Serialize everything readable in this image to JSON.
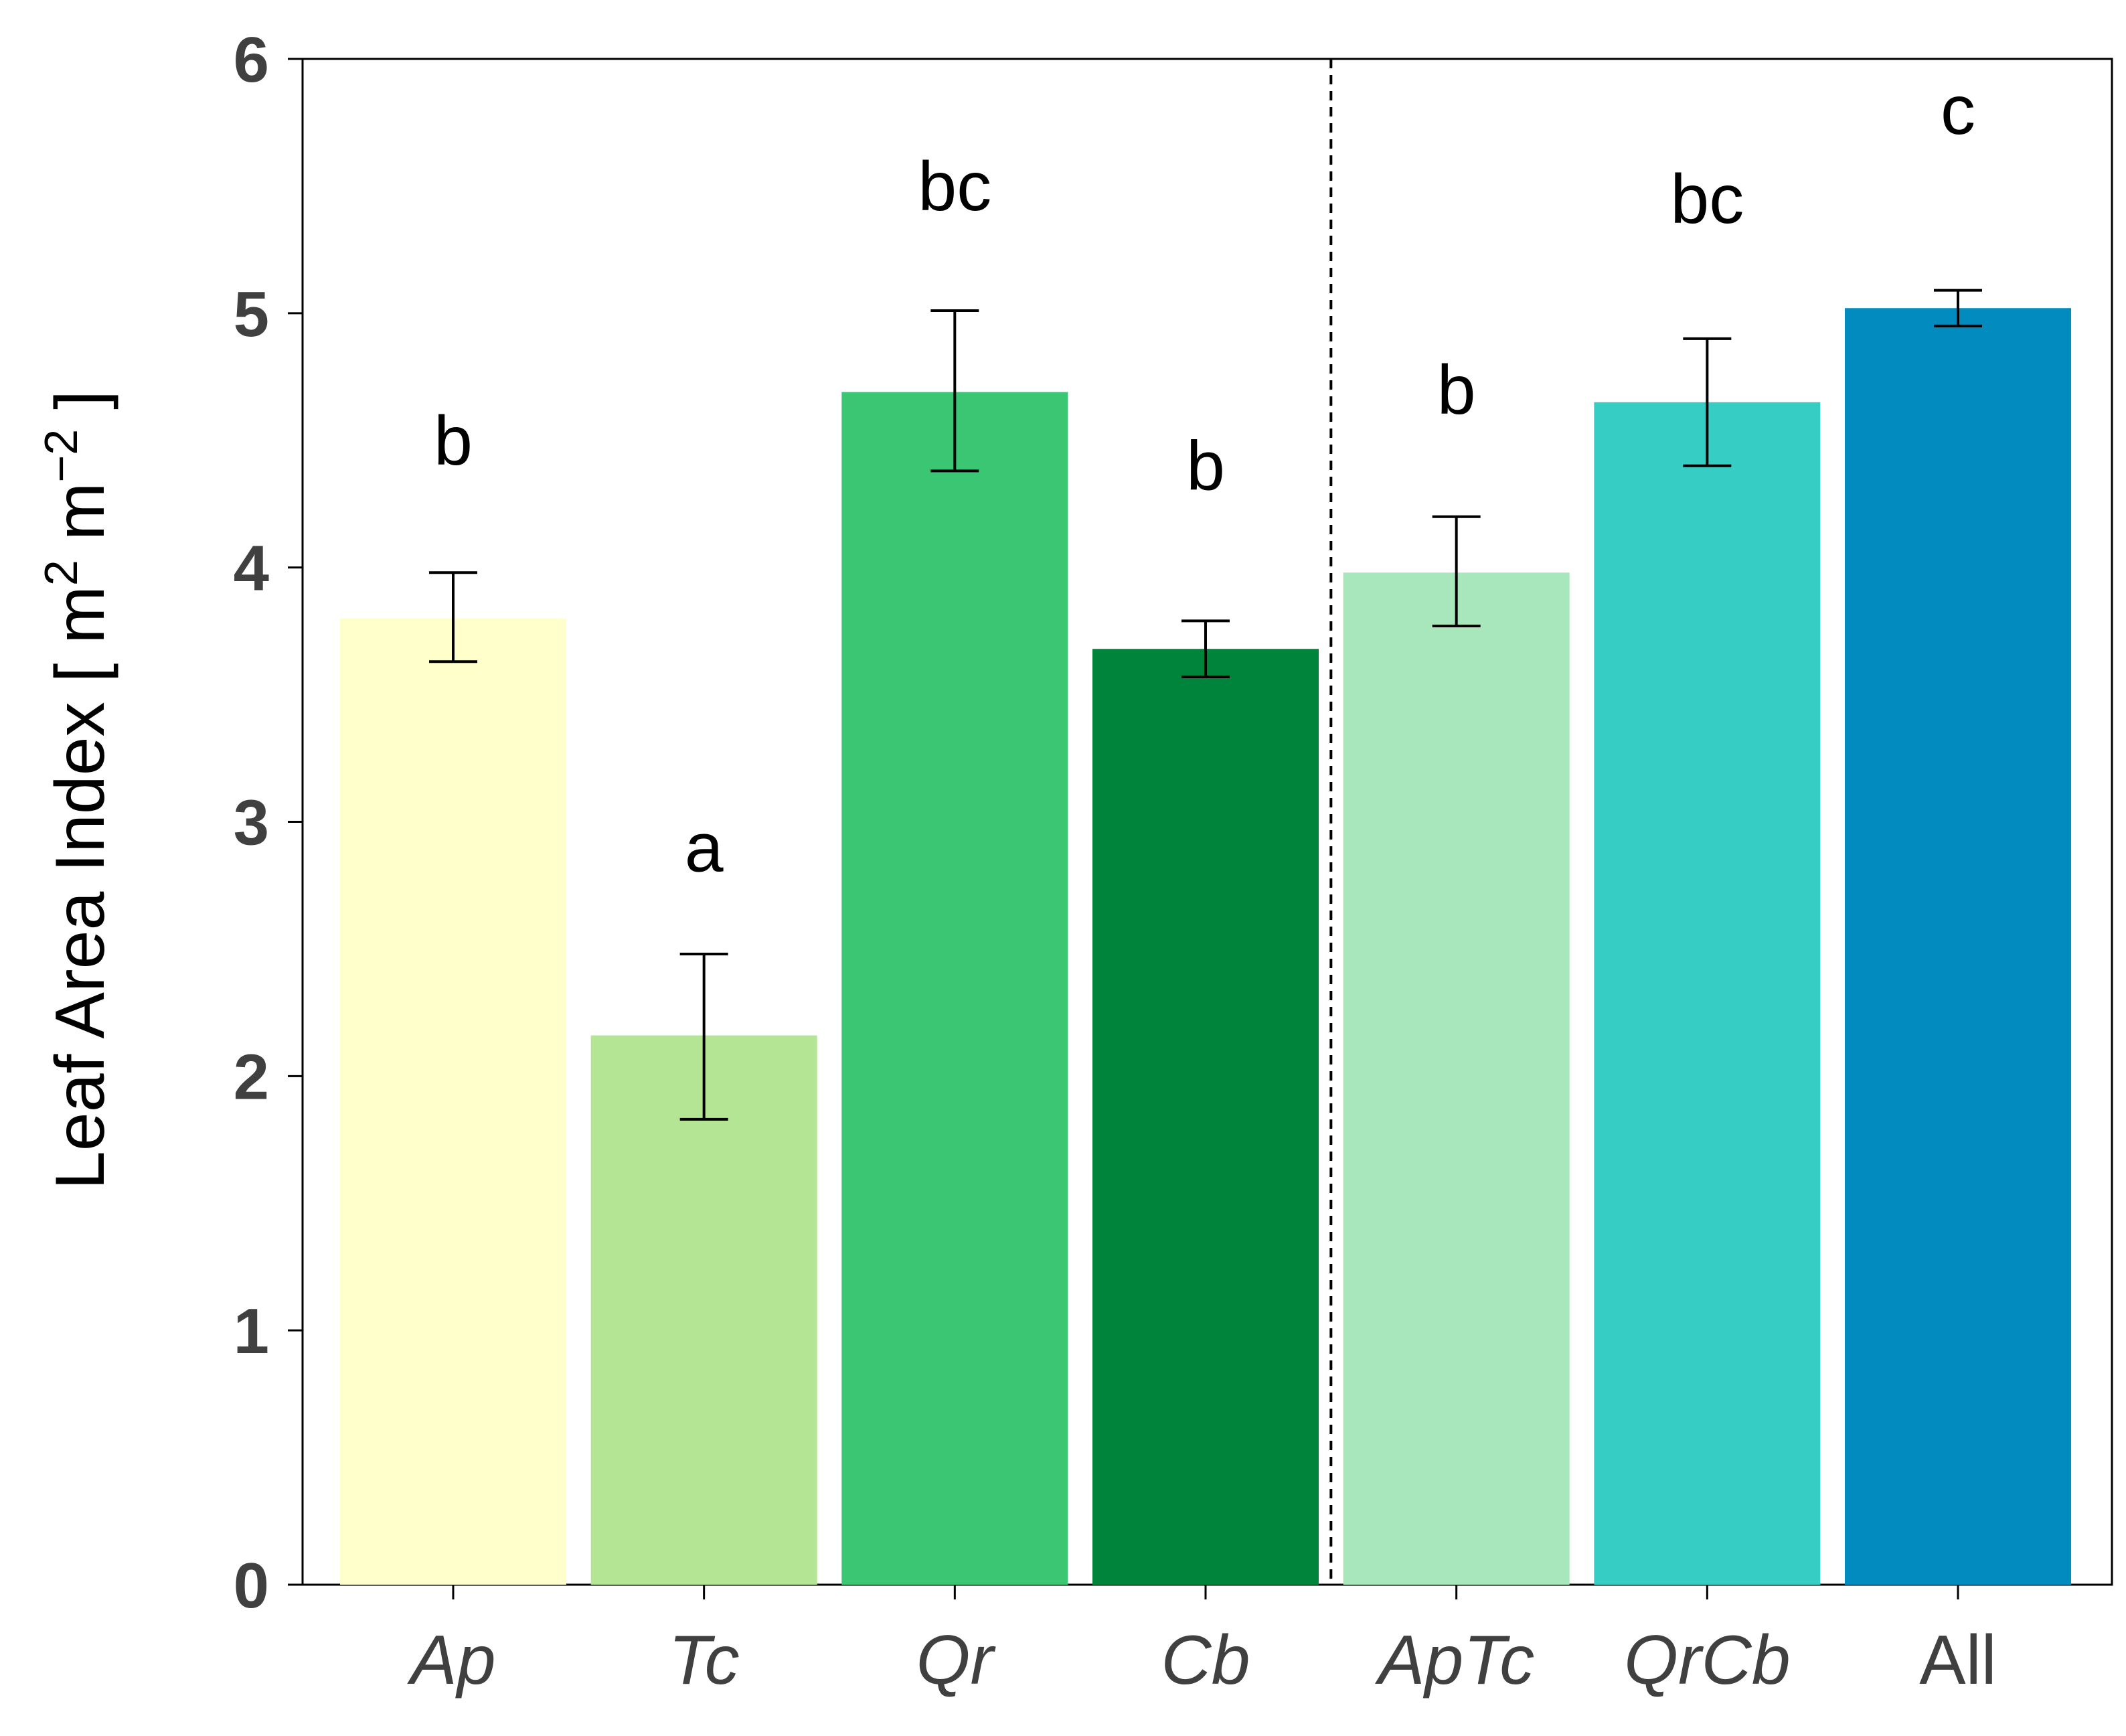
{
  "chart_data": {
    "type": "bar",
    "title": "",
    "xlabel": "",
    "ylabel": "Leaf Area Index [ m",
    "ylabel_unit": {
      "sup1": "2",
      "mid": " m",
      "sup2": "−2",
      "end": " ]"
    },
    "ylim": [
      0,
      6
    ],
    "yticks": [
      "0",
      "1",
      "2",
      "3",
      "4",
      "5",
      "6"
    ],
    "categories": [
      "Ap",
      "Tc",
      "Qr",
      "Cb",
      "ApTc",
      "QrCb",
      "All"
    ],
    "italic": [
      true,
      true,
      true,
      true,
      true,
      true,
      false
    ],
    "values": [
      3.8,
      2.16,
      4.69,
      3.68,
      3.98,
      4.65,
      5.02
    ],
    "error_low": [
      3.63,
      1.83,
      4.38,
      3.57,
      3.77,
      4.4,
      4.95
    ],
    "error_high": [
      3.98,
      2.48,
      5.01,
      3.79,
      4.2,
      4.9,
      5.09
    ],
    "significance": [
      "b",
      "a",
      "bc",
      "b",
      "b",
      "bc",
      "c"
    ],
    "significance_y": [
      4.5,
      2.9,
      5.5,
      4.4,
      4.7,
      5.45,
      5.8
    ],
    "colors": [
      "#ffffcc",
      "#b3e595",
      "#3ac672",
      "#00843c",
      "#a8e6bc",
      "#36cdc4",
      "#018bbe"
    ],
    "separator_after_index": 3,
    "grid": false
  }
}
